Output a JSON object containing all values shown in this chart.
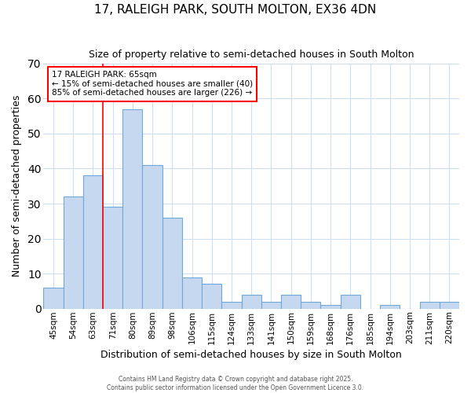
{
  "title": "17, RALEIGH PARK, SOUTH MOLTON, EX36 4DN",
  "subtitle": "Size of property relative to semi-detached houses in South Molton",
  "xlabel": "Distribution of semi-detached houses by size in South Molton",
  "ylabel": "Number of semi-detached properties",
  "categories": [
    "45sqm",
    "54sqm",
    "63sqm",
    "71sqm",
    "80sqm",
    "89sqm",
    "98sqm",
    "106sqm",
    "115sqm",
    "124sqm",
    "133sqm",
    "141sqm",
    "150sqm",
    "159sqm",
    "168sqm",
    "176sqm",
    "185sqm",
    "194sqm",
    "203sqm",
    "211sqm",
    "220sqm"
  ],
  "values": [
    6,
    32,
    38,
    29,
    57,
    41,
    26,
    9,
    7,
    2,
    4,
    2,
    4,
    2,
    1,
    4,
    0,
    1,
    0,
    2,
    2
  ],
  "bar_color": "#c5d8f0",
  "bar_edge_color": "#6fa8d8",
  "background_color": "#ffffff",
  "grid_color": "#ccddf5",
  "annotation_title": "17 RALEIGH PARK: 65sqm",
  "annotation_line1": "← 15% of semi-detached houses are smaller (40)",
  "annotation_line2": "85% of semi-detached houses are larger (226) →",
  "footer_line1": "Contains HM Land Registry data © Crown copyright and database right 2025.",
  "footer_line2": "Contains public sector information licensed under the Open Government Licence 3.0.",
  "ylim": [
    0,
    70
  ],
  "yticks": [
    0,
    10,
    20,
    30,
    40,
    50,
    60,
    70
  ],
  "red_line_index": 2.5
}
